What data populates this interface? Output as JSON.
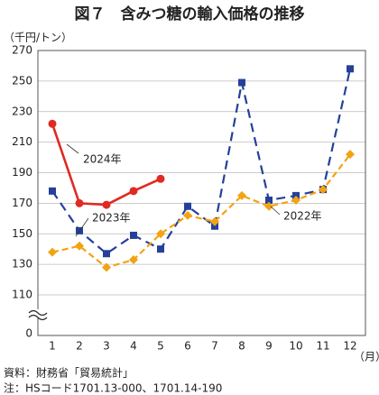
{
  "chart_data": {
    "type": "line",
    "title": "図７　含みつ糖の輸入価格の推移",
    "y_label": "（千円/トン）",
    "x_label": "（月）",
    "source": "資料：財務省「貿易統計」",
    "note": "注：HSコード1701.13-000、1701.14-190",
    "categories": [
      "1",
      "2",
      "3",
      "4",
      "5",
      "6",
      "7",
      "8",
      "9",
      "10",
      "11",
      "12"
    ],
    "ylim": [
      110,
      270
    ],
    "yticks": [
      0,
      110,
      130,
      150,
      170,
      190,
      210,
      230,
      250,
      270
    ],
    "axis_break": true,
    "grid": true,
    "series": [
      {
        "name": "2022年",
        "color": "#24409a",
        "marker": "square",
        "dash": "dashed",
        "values": [
          178,
          152,
          137,
          149,
          140,
          168,
          155,
          249,
          172,
          175,
          179,
          258
        ]
      },
      {
        "name": "2023年",
        "color": "#f2a314",
        "marker": "diamond",
        "dash": "dashdot",
        "values": [
          138,
          142,
          128,
          133,
          150,
          162,
          158,
          175,
          168,
          172,
          179,
          202
        ]
      },
      {
        "name": "2024年",
        "color": "#e02a22",
        "marker": "circle",
        "dash": "solid",
        "values": [
          222,
          170,
          169,
          178,
          186,
          null,
          null,
          null,
          null,
          null,
          null,
          null
        ]
      }
    ]
  }
}
